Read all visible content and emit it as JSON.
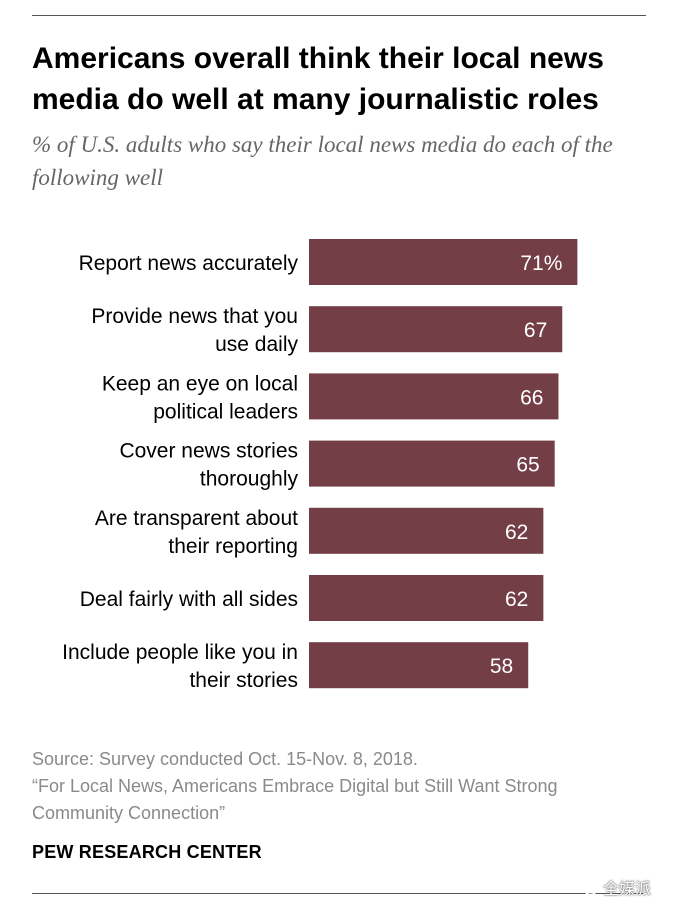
{
  "title": "Americans overall think their local news media do well at many journalistic roles",
  "subtitle": "% of U.S. adults who say their local news media do each of the following well",
  "chart_data": {
    "type": "bar",
    "orientation": "horizontal",
    "categories": [
      [
        "Report news accurately"
      ],
      [
        "Provide news that you",
        "use daily"
      ],
      [
        "Keep an eye on local",
        "political leaders"
      ],
      [
        "Cover news stories",
        "thoroughly"
      ],
      [
        "Are transparent about",
        "their reporting"
      ],
      [
        "Deal fairly with all sides"
      ],
      [
        "Include people like you in",
        "their stories"
      ]
    ],
    "values": [
      71,
      67,
      66,
      65,
      62,
      62,
      58
    ],
    "value_labels": [
      "71%",
      "67",
      "66",
      "65",
      "62",
      "62",
      "58"
    ],
    "xlim": [
      0,
      100
    ],
    "bar_color": "#733e45",
    "value_label_color": "#ffffff"
  },
  "source": {
    "line1": "Source: Survey conducted Oct. 15-Nov. 8, 2018.",
    "line2": "“For Local News, Americans Embrace Digital but Still Want Strong",
    "line3": "Community Connection”"
  },
  "brand": "PEW RESEARCH CENTER",
  "watermark": {
    "text": "全媒派",
    "icon": "wechat-icon"
  }
}
